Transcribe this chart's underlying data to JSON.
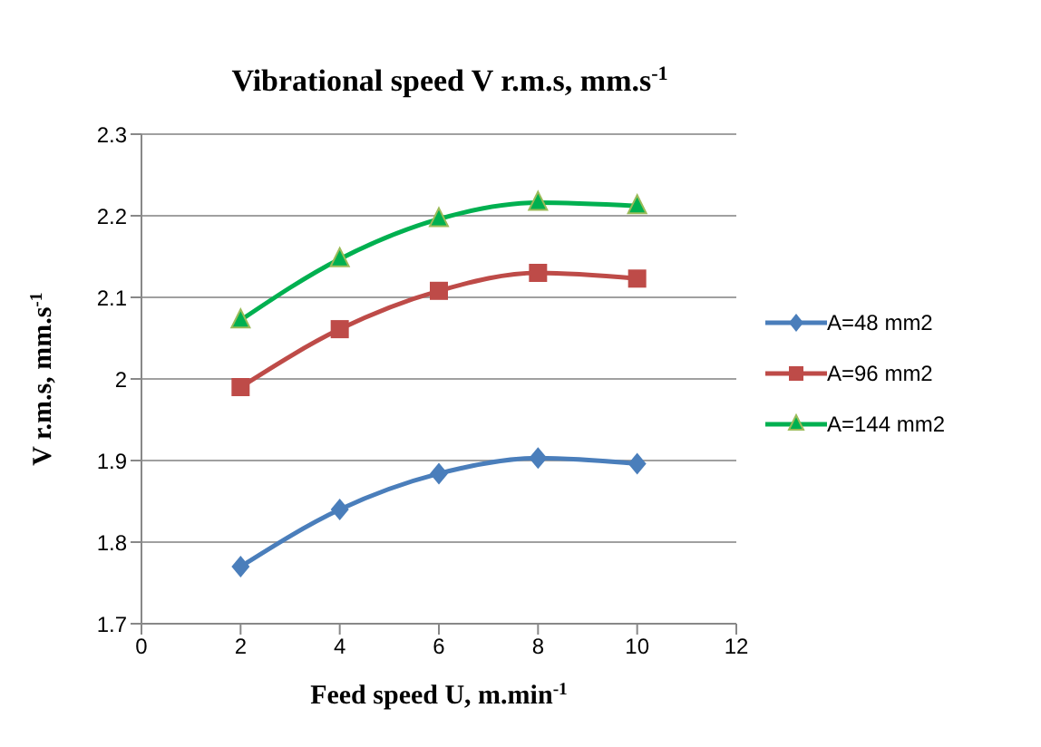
{
  "chart_data": {
    "type": "line",
    "title": "Vibrational speed V r.m.s, mm.s$^{-1}$",
    "xlabel": "Feed speed U, m.min$^{-1}$",
    "ylabel": "V r.m.s, mm.s$^{-1}$",
    "x": [
      2,
      4,
      6,
      8,
      10
    ],
    "series": [
      {
        "name": "A=48 mm2",
        "color": "#4a7ebb",
        "marker": "diamond",
        "values": [
          1.77,
          1.84,
          1.884,
          1.903,
          1.896
        ]
      },
      {
        "name": "A=96 mm2",
        "color": "#be4b48",
        "marker": "square",
        "values": [
          1.99,
          2.061,
          2.108,
          2.13,
          2.123
        ]
      },
      {
        "name": "A=144 mm2",
        "color": "#00b050",
        "marker": "triangle",
        "values": [
          2.072,
          2.147,
          2.196,
          2.216,
          2.212
        ]
      }
    ],
    "xlim": [
      0,
      12
    ],
    "xticks": [
      0,
      2,
      4,
      6,
      8,
      10,
      12
    ],
    "ylim": [
      1.7,
      2.3
    ],
    "yticks": [
      1.7,
      1.8,
      1.9,
      2,
      2.1,
      2.2,
      2.3
    ],
    "grid": "y",
    "legend": "right",
    "line_style": "solid"
  }
}
